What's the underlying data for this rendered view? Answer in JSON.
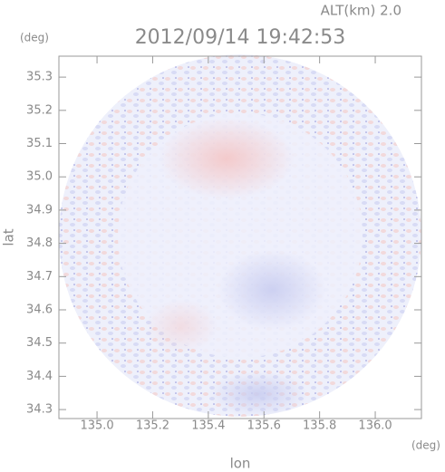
{
  "chart_data": {
    "type": "radar-map",
    "title": "2012/09/14 19:42:53",
    "altitude_label": "ALT(km) 2.0",
    "ylabel": "lat",
    "xlabel": "lon",
    "y_unit": "(deg)",
    "x_unit": "(deg)",
    "xlim": [
      134.863,
      136.166
    ],
    "ylim": [
      34.273,
      35.363
    ],
    "xticks": [
      {
        "value": 135,
        "label": "135.0"
      },
      135.2,
      135.4,
      135.6,
      135.8,
      {
        "value": 136,
        "label": "136.0"
      }
    ],
    "yticks": [
      34.3,
      34.4,
      34.5,
      34.6,
      34.7,
      34.8,
      34.9,
      {
        "value": 35,
        "label": "35.0"
      },
      35.1,
      35.2,
      35.3
    ]
  }
}
